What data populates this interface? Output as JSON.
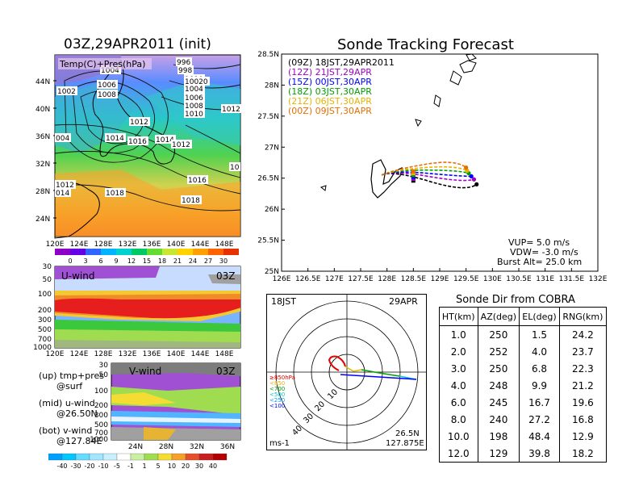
{
  "init_title": "03Z,29APR2011 (init)",
  "main_title": "Sonde Tracking Forecast",
  "surface_map": {
    "label": "Temp(C)+Pres(hPa)",
    "lon_ticks": [
      "120E",
      "124E",
      "128E",
      "132E",
      "136E",
      "140E",
      "144E",
      "148E"
    ],
    "lat_ticks": [
      "44N",
      "40N",
      "36N",
      "32N",
      "28N",
      "24N"
    ],
    "isobar_labels": [
      "1004",
      "996",
      "998",
      "1002",
      "1006",
      "1008",
      "1010",
      "10020",
      "1004",
      "1006",
      "1008",
      "1012",
      "1010",
      "1012",
      "004",
      "1014",
      "1016",
      "1014",
      "1012",
      "1016",
      "10",
      "1012",
      "014",
      "1018",
      "1018"
    ],
    "colorbar": [
      "0",
      "3",
      "6",
      "9",
      "12",
      "15",
      "18",
      "21",
      "24",
      "27",
      "30"
    ]
  },
  "u_wind": {
    "label": "U-wind",
    "time": "03Z",
    "p_ticks": [
      "30",
      "50",
      "100",
      "200",
      "300",
      "500",
      "700",
      "1000"
    ],
    "lon_ticks": [
      "120E",
      "124E",
      "128E",
      "132E",
      "136E",
      "140E",
      "144E",
      "148E"
    ]
  },
  "v_wind": {
    "label": "V-wind",
    "time": "03Z",
    "p_ticks": [
      "30",
      "50",
      "100",
      "200",
      "300",
      "500",
      "700",
      "1000"
    ],
    "lat_ticks": [
      "24N",
      "28N",
      "32N",
      "36N"
    ]
  },
  "side_notes": {
    "up": "(up) tmp+pres",
    "up_sub": "@surf",
    "mid": "(mid) u-wind",
    "mid_sub": "@26.50N",
    "bot": "(bot) v-wind",
    "bot_sub": "@127.84E"
  },
  "wind_colorbar": [
    "-40",
    "-30",
    "-20",
    "-10",
    "-5",
    "-1",
    "1",
    "5",
    "10",
    "20",
    "30",
    "40"
  ],
  "track_map": {
    "lat_ticks": [
      "28.5N",
      "28N",
      "27.5N",
      "27N",
      "26.5N",
      "26N",
      "25.5N",
      "25N"
    ],
    "lon_ticks": [
      "126E",
      "126.5E",
      "127E",
      "127.5E",
      "128E",
      "128.5E",
      "129E",
      "129.5E",
      "130E",
      "130.5E",
      "131E",
      "131.5E",
      "132E"
    ],
    "vup": "VUP= 5.0 m/s",
    "vdw": "VDW= -3.0 m/s",
    "burst": "Burst Alt= 25.0 km",
    "colors": {
      "09Z": "#000000",
      "12Z": "#a000c8",
      "15Z": "#0000ff",
      "18Z": "#00a000",
      "21Z": "#e6b400",
      "00Z": "#e66e00"
    }
  },
  "chart_data": [
    {
      "type": "line",
      "title": "Sonde Tracking Forecast",
      "xlabel": "",
      "ylabel": "",
      "xlim": [
        126,
        132
      ],
      "ylim": [
        25,
        28.5
      ],
      "series": [
        {
          "name": "(09Z) 18JST,29APR2011",
          "color": "#000000",
          "launch": [
            127.9,
            26.55
          ],
          "landing": [
            129.7,
            26.4
          ]
        },
        {
          "name": "(12Z) 21JST,29APR",
          "color": "#a000c8",
          "launch": [
            127.9,
            26.55
          ],
          "landing": [
            129.65,
            26.48
          ]
        },
        {
          "name": "(15Z) 00JST,30APR",
          "color": "#0000ff",
          "launch": [
            127.9,
            26.55
          ],
          "landing": [
            129.6,
            26.53
          ]
        },
        {
          "name": "(18Z) 03JST,30APR",
          "color": "#00a000",
          "launch": [
            127.9,
            26.55
          ],
          "landing": [
            129.55,
            26.58
          ]
        },
        {
          "name": "(21Z) 06JST,30APR",
          "color": "#e6b400",
          "launch": [
            127.9,
            26.55
          ],
          "landing": [
            129.52,
            26.62
          ]
        },
        {
          "name": "(00Z) 09JST,30APR",
          "color": "#e66e00",
          "launch": [
            127.9,
            26.55
          ],
          "landing": [
            129.5,
            26.67
          ]
        }
      ]
    },
    {
      "type": "table",
      "title": "Sonde Dir from COBRA",
      "columns": [
        "HT(km)",
        "AZ(deg)",
        "EL(deg)",
        "RNG(km)"
      ],
      "rows": [
        [
          "1.0",
          "250",
          "1.5",
          "24.2"
        ],
        [
          "2.0",
          "252",
          "4.0",
          "23.7"
        ],
        [
          "3.0",
          "250",
          "6.8",
          "22.3"
        ],
        [
          "4.0",
          "248",
          "9.9",
          "21.2"
        ],
        [
          "6.0",
          "245",
          "16.7",
          "19.6"
        ],
        [
          "8.0",
          "240",
          "27.2",
          "16.8"
        ],
        [
          "10.0",
          "198",
          "48.4",
          "12.9"
        ],
        [
          "12.0",
          "129",
          "39.8",
          "18.2"
        ]
      ]
    }
  ],
  "hodograph": {
    "time": "18JST",
    "date": "29APR",
    "unit": "ms-1",
    "ring_labels": [
      "10",
      "20",
      "30",
      "40"
    ],
    "legend": [
      "≥850hPa",
      "<850",
      "<700",
      "<500",
      "<250",
      "<100"
    ],
    "legend_colors": [
      "#e60000",
      "#e6b400",
      "#00a000",
      "#00c8c8",
      "#00a0ff",
      "#0000ff"
    ],
    "location_lat": "26.5N",
    "location_lon": "127.875E"
  }
}
